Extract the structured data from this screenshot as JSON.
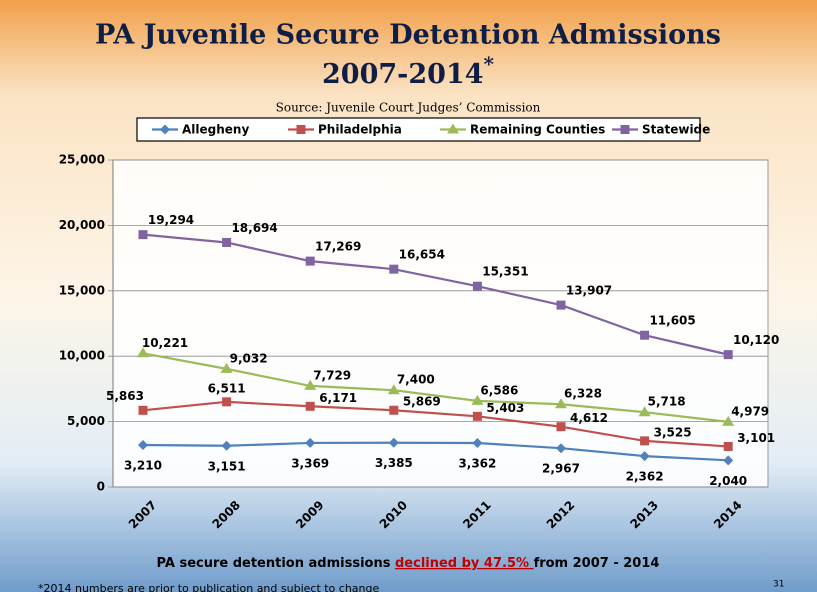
{
  "chart_data": {
    "type": "line",
    "title": "PA Juvenile Secure Detention Admissions",
    "title_line2": "2007-2014",
    "title_mark": "*",
    "subtitle": "Source: Juvenile Court Judges’ Commission",
    "categories": [
      "2007",
      "2008",
      "2009",
      "2010",
      "2011",
      "2012",
      "2013",
      "2014"
    ],
    "series": [
      {
        "name": "Allegheny",
        "color": "#4f81bd",
        "marker": "diamond",
        "values": [
          3210,
          3151,
          3369,
          3385,
          3362,
          2967,
          2362,
          2040
        ],
        "value_labels": [
          "3,210",
          "3,151",
          "3,369",
          "3,385",
          "3,362",
          "2,967",
          "2,362",
          "2,040"
        ]
      },
      {
        "name": "Philadelphia",
        "color": "#c0504d",
        "marker": "square",
        "values": [
          5863,
          6511,
          6171,
          5869,
          5403,
          4612,
          3525,
          3101
        ],
        "value_labels": [
          "5,863",
          "6,511",
          "6,171",
          "5,869",
          "5,403",
          "4,612",
          "3,525",
          "3,101"
        ]
      },
      {
        "name": "Remaining Counties",
        "color": "#9bbb59",
        "marker": "triangle",
        "values": [
          10221,
          9032,
          7729,
          7400,
          6586,
          6328,
          5718,
          4979
        ],
        "value_labels": [
          "10,221",
          "9,032",
          "7,729",
          "7,400",
          "6,586",
          "6,328",
          "5,718",
          "4,979"
        ]
      },
      {
        "name": "Statewide",
        "color": "#8064a2",
        "marker": "square",
        "values": [
          19294,
          18694,
          17269,
          16654,
          15351,
          13907,
          11605,
          10120
        ],
        "value_labels": [
          "19,294",
          "18,694",
          "17,269",
          "16,654",
          "15,351",
          "13,907",
          "11,605",
          "10,120"
        ]
      }
    ],
    "ylim": [
      0,
      25000
    ],
    "yticks": [
      0,
      {
        "value": 5000,
        "label": "5,000"
      },
      {
        "value": 10000,
        "label": "10,000"
      },
      {
        "value": 15000,
        "label": "15,000"
      },
      {
        "value": 20000,
        "label": "20,000"
      },
      {
        "value": 25000,
        "label": "25,000"
      }
    ],
    "grid": true,
    "legend": "top",
    "annotation": {
      "before": "PA secure detention admissions ",
      "highlight": "declined  by 47.5% ",
      "after": "from 2007 - 2014"
    },
    "footnote": "*2014 numbers are prior to publication and subject to change",
    "page_number": "31"
  }
}
